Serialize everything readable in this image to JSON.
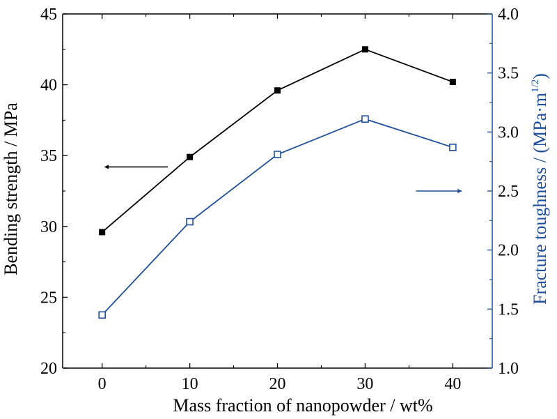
{
  "chart_data": {
    "type": "line",
    "x": [
      0,
      10,
      20,
      30,
      40
    ],
    "xlabel": "Mass fraction of nanopowder / wt%",
    "xlim": [
      -4.5,
      44.5
    ],
    "xticks": [
      "0",
      "10",
      "20",
      "30",
      "40"
    ],
    "y_left": {
      "label": "Bending strength / MPa",
      "lim": [
        20,
        45
      ],
      "ticks": [
        "20",
        "25",
        "30",
        "35",
        "40",
        "45"
      ],
      "color": "#000000"
    },
    "y_right": {
      "label_main": "Fracture toughness / (MPa·m",
      "label_sup": "1/2",
      "label_close": ")",
      "lim": [
        1.0,
        4.0
      ],
      "ticks": [
        "1.0",
        "1.5",
        "2.0",
        "2.5",
        "3.0",
        "3.5",
        "4.0"
      ],
      "color": "#1f4e9a"
    },
    "series": [
      {
        "axis": "left",
        "marker": "filled-square",
        "color": "#000000",
        "values": [
          29.6,
          34.9,
          39.6,
          42.5,
          40.2
        ]
      },
      {
        "axis": "right",
        "marker": "open-square",
        "color": "#1f4e9a",
        "values": [
          1.45,
          2.24,
          2.81,
          3.11,
          2.87
        ]
      }
    ],
    "annotations": [
      {
        "type": "arrow",
        "direction": "left",
        "axis": "left",
        "x_from": 7.5,
        "x_to": 0.3,
        "y": 34.2,
        "color": "#000000"
      },
      {
        "type": "arrow",
        "direction": "right",
        "axis": "right",
        "x_from": 35.8,
        "x_to": 41.0,
        "y": 2.5,
        "color": "#1f4e9a"
      }
    ],
    "grid": false,
    "legend": "none"
  }
}
